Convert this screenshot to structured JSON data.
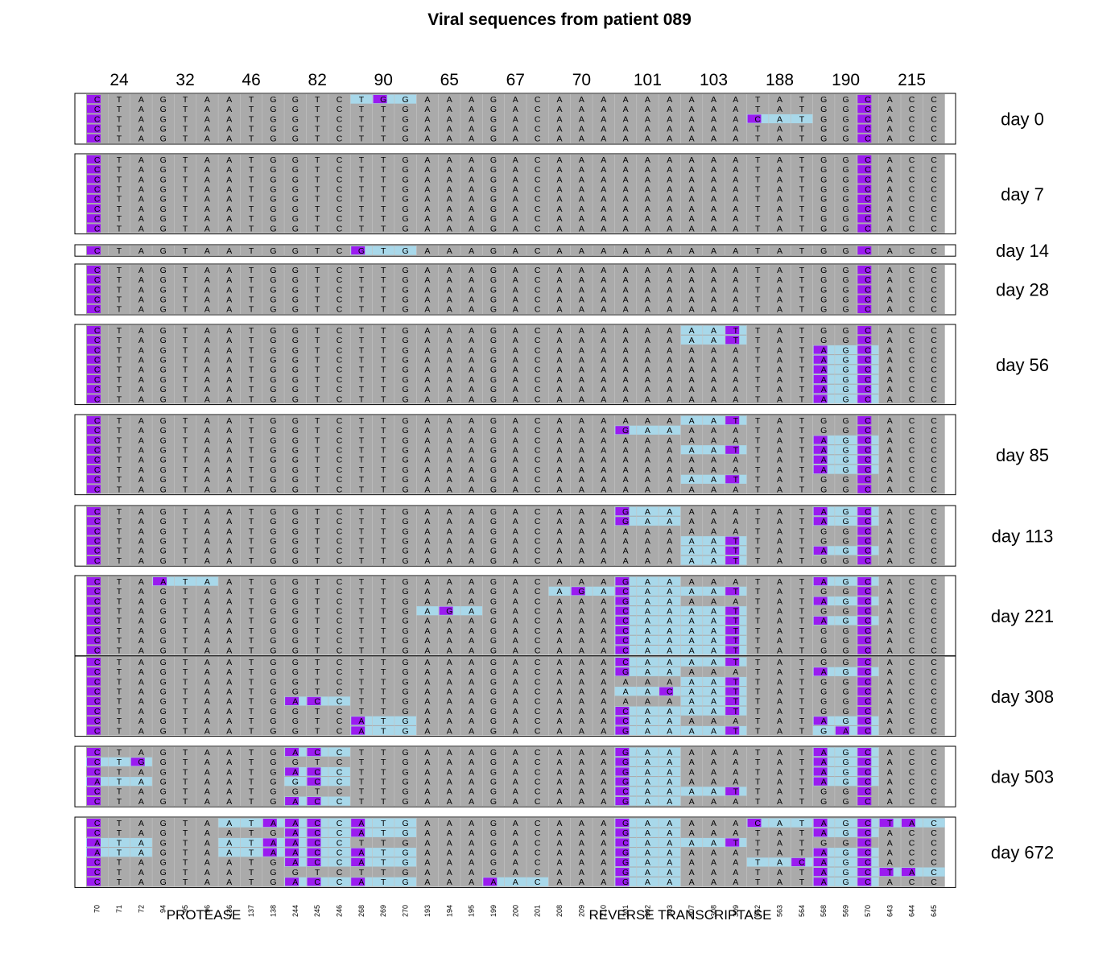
{
  "title": "Viral sequences from patient 089",
  "colors": {
    "background": "#ffffff",
    "panel_border": "#000000",
    "cell": "#aaaaaa",
    "cell_line": "#c4c4c4",
    "mutation": "#9b1bf0",
    "codon": "#a8d8ea",
    "text": "#000000"
  },
  "chart_data": {
    "type": "heatmap",
    "title": "Viral sequences from patient 089",
    "codons": [
      "24",
      "32",
      "46",
      "82",
      "90",
      "65",
      "67",
      "70",
      "101",
      "103",
      "188",
      "190",
      "215"
    ],
    "positions": [
      "70",
      "71",
      "72",
      "94",
      "95",
      "96",
      "136",
      "137",
      "138",
      "244",
      "245",
      "246",
      "268",
      "269",
      "270",
      "193",
      "194",
      "195",
      "199",
      "200",
      "201",
      "208",
      "209",
      "210",
      "301",
      "302",
      "303",
      "307",
      "308",
      "309",
      "562",
      "563",
      "564",
      "568",
      "569",
      "570",
      "643",
      "644",
      "645"
    ],
    "region_labels": [
      "PROTEASE",
      "REVERSE TRANSCRIPTASE"
    ],
    "reference": [
      "C",
      "T",
      "A",
      "G",
      "T",
      "A",
      "A",
      "T",
      "G",
      "G",
      "T",
      "C",
      "T",
      "T",
      "G",
      "A",
      "A",
      "A",
      "G",
      "A",
      "C",
      "A",
      "A",
      "A",
      "A",
      "A",
      "A",
      "A",
      "A",
      "A",
      "T",
      "A",
      "T",
      "G",
      "G",
      "C",
      "A",
      "C",
      "C"
    ],
    "fixed_mutation_position": "70 and 570",
    "timepoints": [
      {
        "label": "day 0",
        "sequences": [
          "CTAGTAATGGTCTGGAAAGACAAAAAAAAATATGGCACC",
          "CTAGTAATGGTCTTGAAAGACAAAAAAAAATATGGCACC",
          "CTAGTAATGGTCTTGAAAGACAAAAAAAAACATGGCACC",
          "CTAGTAATGGTCTTGAAAGACAAAAAAAAATATGGCACC",
          "CTAGTAATGGTCTTGAAAGACAAAAAAAAATATGGCACC"
        ]
      },
      {
        "label": "day 7",
        "sequences": [
          "CTAGTAATGGTCTTGAAAGACAAAAAAAAATATGGCACC",
          "CTAGTAATGGTCTTGAAAGACAAAAAAAAATATGGCACC",
          "CTAGTAATGGTCTTGAAAGACAAAAAAAAATATGGCACC",
          "CTAGTAATGGTCTTGAAAGACAAAAAAAAATATGGCACC",
          "CTAGTAATGGTCTTGAAAGACAAAAAAAAATATGGCACC",
          "CTAGTAATGGTCTTGAAAGACAAAAAAAAATATGGCACC",
          "CTAGTAATGGTCTTGAAAGACAAAAAAAAATATGGCACC",
          "CTAGTAATGGTCTTGAAAGACAAAAAAAAATATGGCACC"
        ]
      },
      {
        "label": "day 14",
        "sequences": [
          "CTAGTAATGGTCGTGAAAGACAAAAAAAAATATGGCACC"
        ]
      },
      {
        "label": "day 28",
        "sequences": [
          "CTAGTAATGGTCTTGAAAGACAAAAAAAAATATGGCACC",
          "CTAGTAATGGTCTTGAAAGACAAAAAAAAATATGGCACC",
          "CTAGTAATGGTCTTGAAAGACAAAAAAAAATATGGCACC",
          "CTAGTAATGGTCTTGAAAGACAAAAAAAAATATGGCACC",
          "CTAGTAATGGTCTTGAAAGACAAAAAAAAATATGGCACC"
        ]
      },
      {
        "label": "day 56",
        "sequences": [
          "CTAGTAATGGTCTTGAAAGACAAAAAAAATTATGGCACC",
          "CTAGTAATGGTCTTGAAAGACAAAAAAAATTATGGCACC",
          "CTAGTAATGGTCTTGAAAGACAAAAAAAAATATAGCACC",
          "CTAGTAATGGTCTTGAAAGACAAAAAAAAATATAGCACC",
          "CTAGTAATGGTCTTGAAAGACAAAAAAAAATATAGCACC",
          "CTAGTAATGGTCTTGAAAGACAAAAAAAAATATAGCACC",
          "CTAGTAATGGTCTTGAAAGACAAAAAAAAATATAGCACC",
          "CTAGTAATGGTCTTGAAAGACAAAAAAAAATATAGCACC"
        ]
      },
      {
        "label": "day 85",
        "sequences": [
          "CTAGTAATGGTCTTGAAAGACAAAAAAAATTATGGCACC",
          "CTAGTAATGGTCTTGAAAGACAAAGAAAAATATGGCACC",
          "CTAGTAATGGTCTTGAAAGACAAAAAAAAATATAGCACC",
          "CTAGTAATGGTCTTGAAAGACAAAAAAAATTATAGCACC",
          "CTAGTAATGGTCTTGAAAGACAAAAAAAAATATAGCACC",
          "CTAGTAATGGTCTTGAAAGACAAAAAAAAATATAGCACC",
          "CTAGTAATGGTCTTGAAAGACAAAAAAAATTATGGCACC",
          "CTAGTAATGGTCTTGAAAGACAAAAAAAAATATGGCACC"
        ]
      },
      {
        "label": "day 113",
        "sequences": [
          "CTAGTAATGGTCTTGAAAGACAAAGAAAAATATAGCACC",
          "CTAGTAATGGTCTTGAAAGACAAAGAAAAATATAGCACC",
          "CTAGTAATGGTCTTGAAAGACAAAAAAAAATATGGCACC",
          "CTAGTAATGGTCTTGAAAGACAAAAAAAATTATGGCACC",
          "CTAGTAATGGTCTTGAAAGACAAAAAAAATTATAGCACC",
          "CTAGTAATGGTCTTGAAAGACAAAAAAAATTATGGCACC"
        ]
      },
      {
        "label": "day 221",
        "sequences": [
          "CTAATAATGGTCTTGAAAGACAAAGAAAAATATAGCACC",
          "CTAGTAATGGTCTTGAAAGACAGACAAAATTATGGCACC",
          "CTAGTAATGGTCTTGAAAGACAAAGAAAAATATAGCACC",
          "CTAGTAATGGTCTTGAGAGACAAACAAAATTATGGCACC",
          "CTAGTAATGGTCTTGAAAGACAAACAAAATTATAGCACC",
          "CTAGTAATGGTCTTGAAAGACAAACAAAATTATGGCACC",
          "CTAGTAATGGTCTTGAAAGACAAACAAAATTATGGCACC",
          "CTAGTAATGGTCTTGAAAGACAAACAAAATTATGGCACC"
        ]
      },
      {
        "label": "day 308",
        "sequences": [
          "CTAGTAATGGTCTTGAAAGACAAACAAAATTATGGCACC",
          "CTAGTAATGGTCTTGAAAGACAAAGAAAAATATAGCACC",
          "CTAGTAATGGTCTTGAAAGACAAAAAAAATTATGGCACC",
          "CTAGTAATGGTCTTGAAAGACAAAAACAATTATGGCACC",
          "CTAGTAATGACCTTGAAAGACAAAAAAAATTATGGCACC",
          "CTAGTAATGGTCTTGAAAGACAAACAAAATTATGGCACC",
          "CTAGTAATGGTCATGAAAGACAAACAAAAATATAGCACC",
          "CTAGTAATGGTCATGAAAGACAAAGAAAATTATGACACC"
        ]
      },
      {
        "label": "day 503",
        "sequences": [
          "CTAGTAATGACCTTGAAAGACAAAGAAAAATATAGCACC",
          "CTGGTAATGGTCTTGAAAGACAAAGAAAAATATAGCACC",
          "CTAGTAATGACCTTGAAAGACAAAGAAAAATATAGCACC",
          "ATAGTAATGGCCTTGAAAGACAAAGAAAAATATAGCACC",
          "CTAGTAATGGTCTTGAAAGACAAACAAAATTATGGCACC",
          "CTAGTAATGACCTTGAAAGACAAAGAAAAATATGGCACC"
        ]
      },
      {
        "label": "day 672",
        "sequences": [
          "CTAGTAATAACCATGAAAGACAAAGAAAAACATAGCTAC",
          "CTAGTAATGACCATGAAAGACAAAGAAAAATATAGCACC",
          "ATAGTAATAACCTTGAAAGACAAACAAAATTATGGCACC",
          "ATAGTAATAACCATGAAAGACAAAGAAAAATATAGCACC",
          "CTAGTAATGACCATGAAAGACAAAGAAAAATACAGCACC",
          "CTAGTAATGGTCTTGAAAGACAAAGAAAAATATAGCTAC",
          "CTAGTAATGACCATGAAAAACAAAGAAAAATATAGCACC"
        ]
      }
    ]
  }
}
